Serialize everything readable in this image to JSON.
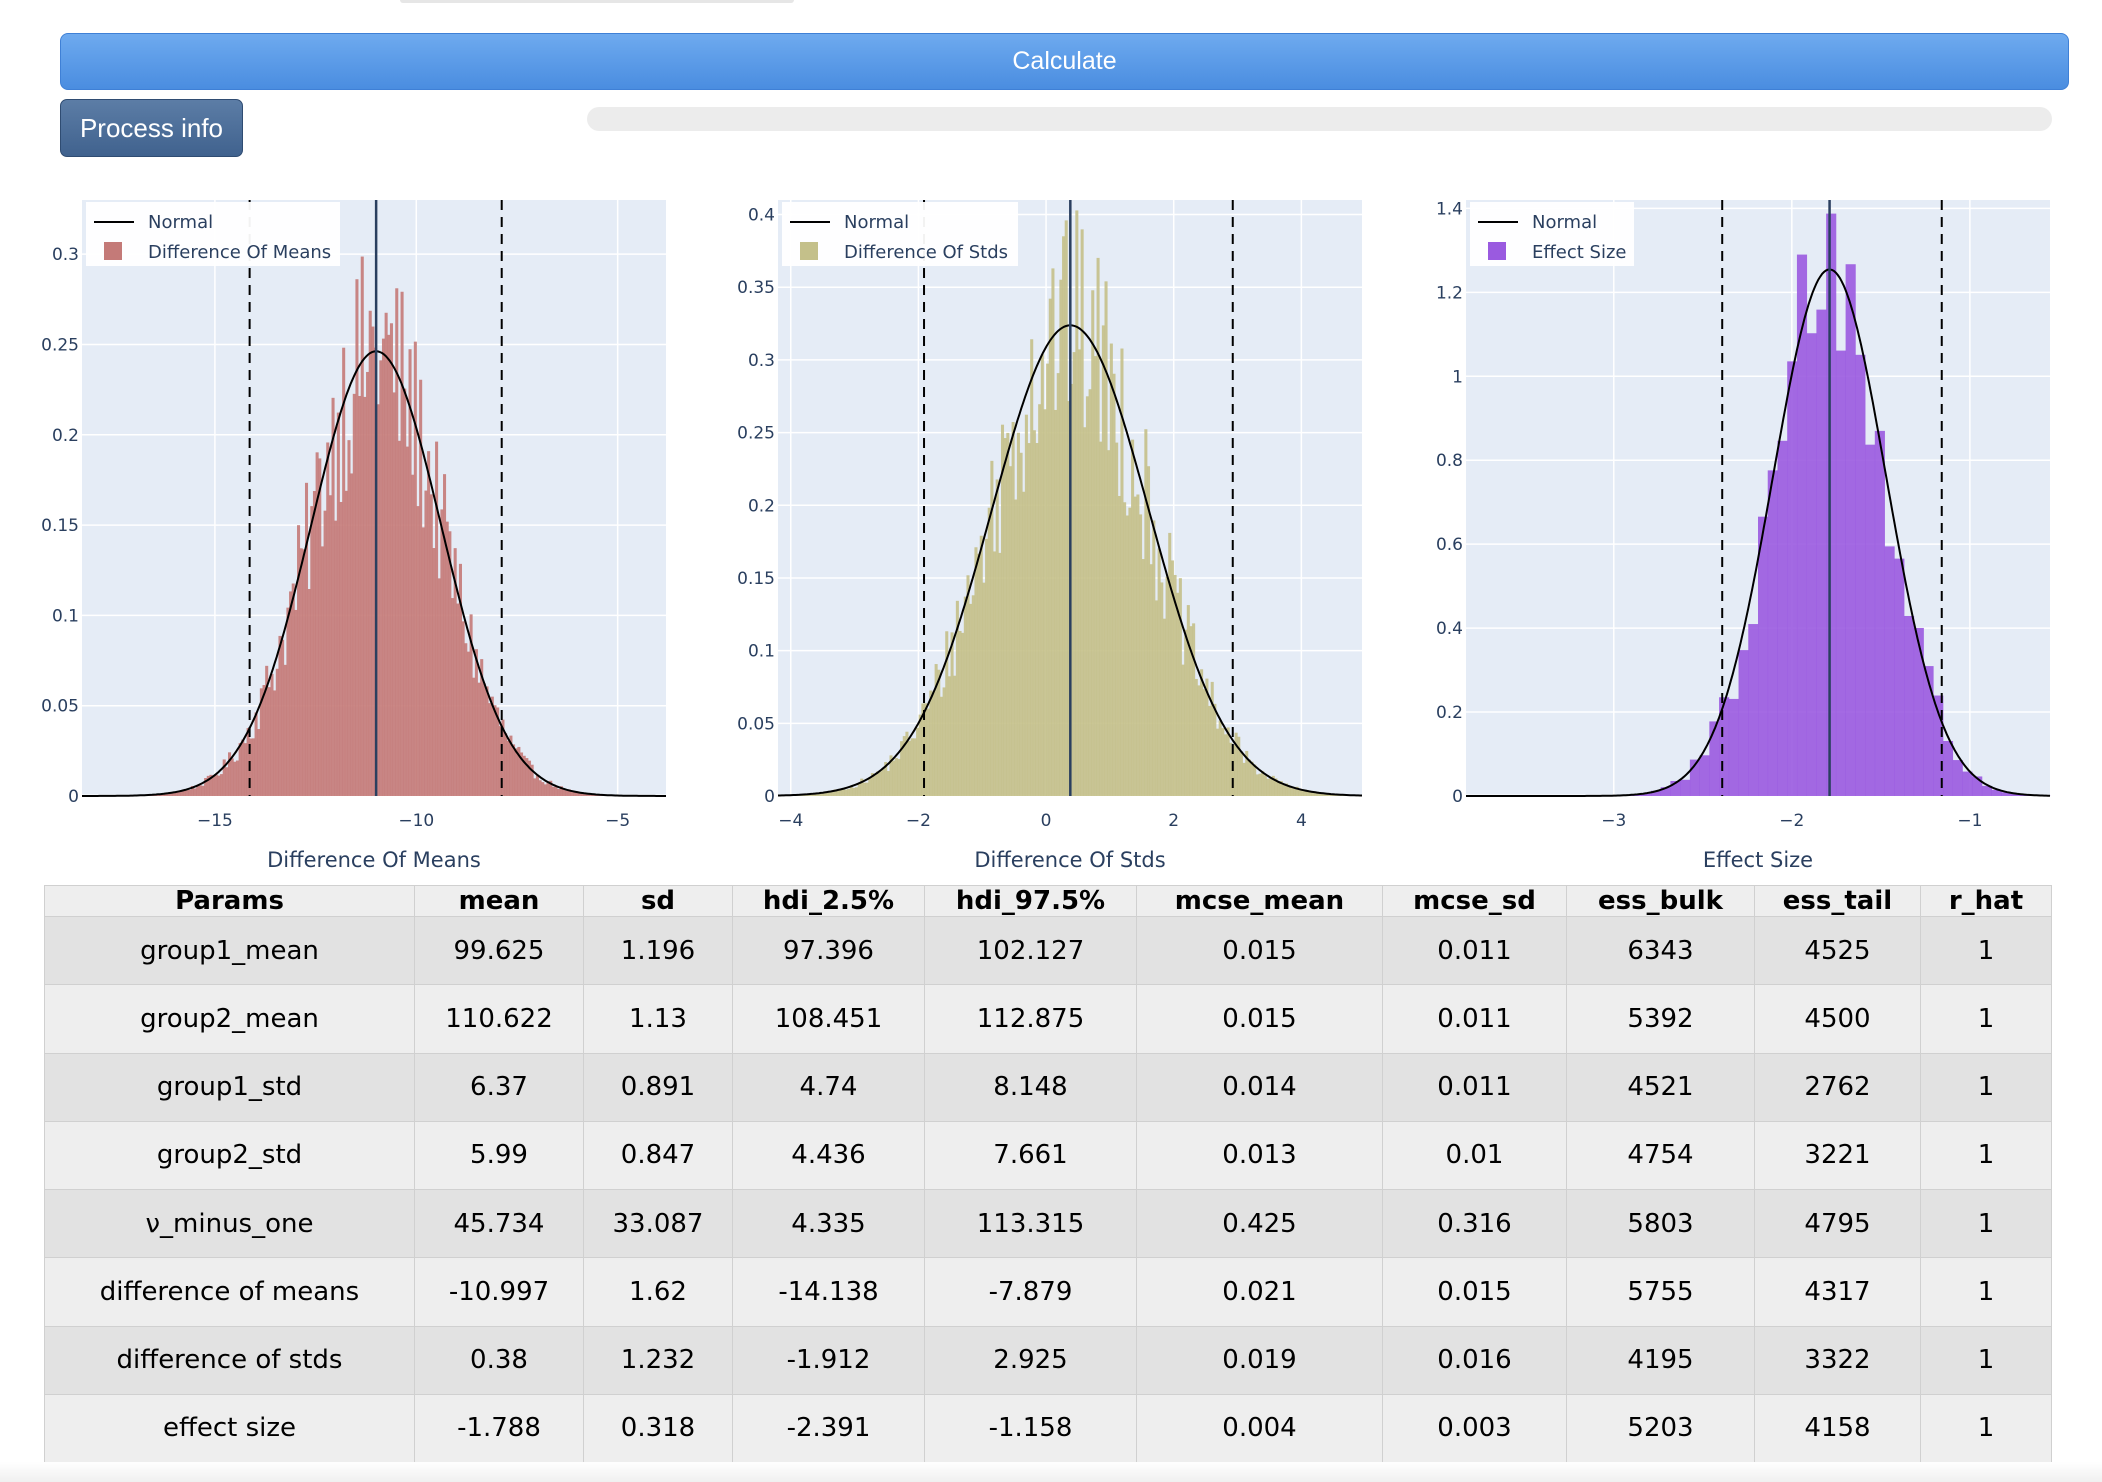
{
  "buttons": {
    "calculate_label": "Calculate",
    "process_info_label": "Process info"
  },
  "progress": {
    "value": 0
  },
  "charts": [
    {
      "chart_data": {
        "type": "bar",
        "title": "",
        "xlabel": "Difference Of Means",
        "ylabel": "",
        "xlim": [
          -18.3,
          -3.8
        ],
        "ylim": [
          0,
          0.33
        ],
        "xticks": [
          -15,
          -10,
          -5
        ],
        "yticks": [
          0,
          0.05,
          0.1,
          0.15,
          0.2,
          0.25,
          0.3
        ],
        "series": [
          {
            "name": "Difference Of Means",
            "type": "histogram",
            "mean": -10.997,
            "sd": 1.62,
            "bin_count": 220
          },
          {
            "name": "Normal",
            "type": "line",
            "mean": -10.997,
            "sd": 1.62
          }
        ],
        "vlines": {
          "center": -10.997,
          "hdi": [
            -14.138,
            -7.879
          ]
        },
        "legend_position": "top-left",
        "grid": true
      },
      "ytick_labels": [
        "0",
        "0.05",
        "0.1",
        "0.15",
        "0.2",
        "0.25",
        "0.3"
      ],
      "xtick_labels": [
        "−15",
        "−10",
        "−5"
      ],
      "color": "#c47a78"
    },
    {
      "chart_data": {
        "type": "bar",
        "title": "",
        "xlabel": "Difference Of Stds",
        "ylabel": "",
        "xlim": [
          -4.2,
          4.95
        ],
        "ylim": [
          0,
          0.41
        ],
        "xticks": [
          -4,
          -2,
          0,
          2,
          4
        ],
        "yticks": [
          0,
          0.05,
          0.1,
          0.15,
          0.2,
          0.25,
          0.3,
          0.35,
          0.4
        ],
        "series": [
          {
            "name": "Difference Of Stds",
            "type": "histogram",
            "mean": 0.38,
            "sd": 1.232,
            "bin_count": 220
          },
          {
            "name": "Normal",
            "type": "line",
            "mean": 0.38,
            "sd": 1.232
          }
        ],
        "vlines": {
          "center": 0.38,
          "hdi": [
            -1.912,
            2.925
          ]
        },
        "legend_position": "top-left",
        "grid": true
      },
      "ytick_labels": [
        "0",
        "0.05",
        "0.1",
        "0.15",
        "0.2",
        "0.25",
        "0.3",
        "0.35",
        "0.4"
      ],
      "xtick_labels": [
        "−4",
        "−2",
        "0",
        "2",
        "4"
      ],
      "color": "#c4c08a"
    },
    {
      "chart_data": {
        "type": "bar",
        "title": "",
        "xlabel": "Effect Size",
        "ylabel": "",
        "xlim": [
          -3.83,
          -0.55
        ],
        "ylim": [
          0,
          1.42
        ],
        "xticks": [
          -3,
          -2,
          -1
        ],
        "yticks": [
          0,
          0.2,
          0.4,
          0.6,
          0.8,
          1,
          1.2,
          1.4
        ],
        "series": [
          {
            "name": "Effect Size",
            "type": "histogram",
            "mean": -1.788,
            "sd": 0.318,
            "bin_count": 60
          },
          {
            "name": "Normal",
            "type": "line",
            "mean": -1.788,
            "sd": 0.318
          }
        ],
        "vlines": {
          "center": -1.788,
          "hdi": [
            -2.391,
            -1.158
          ]
        },
        "legend_position": "top-left",
        "grid": true
      },
      "ytick_labels": [
        "0",
        "0.2",
        "0.4",
        "0.6",
        "0.8",
        "1",
        "1.2",
        "1.4"
      ],
      "xtick_labels": [
        "−3",
        "−2",
        "−1"
      ],
      "color": "#9a5ae0"
    }
  ],
  "table": {
    "headers": [
      "Params",
      "mean",
      "sd",
      "hdi_2.5%",
      "hdi_97.5%",
      "mcse_mean",
      "mcse_sd",
      "ess_bulk",
      "ess_tail",
      "r_hat"
    ],
    "rows": [
      [
        "group1_mean",
        "99.625",
        "1.196",
        "97.396",
        "102.127",
        "0.015",
        "0.011",
        "6343",
        "4525",
        "1"
      ],
      [
        "group2_mean",
        "110.622",
        "1.13",
        "108.451",
        "112.875",
        "0.015",
        "0.011",
        "5392",
        "4500",
        "1"
      ],
      [
        "group1_std",
        "6.37",
        "0.891",
        "4.74",
        "8.148",
        "0.014",
        "0.011",
        "4521",
        "2762",
        "1"
      ],
      [
        "group2_std",
        "5.99",
        "0.847",
        "4.436",
        "7.661",
        "0.013",
        "0.01",
        "4754",
        "3221",
        "1"
      ],
      [
        "ν_minus_one",
        "45.734",
        "33.087",
        "4.335",
        "113.315",
        "0.425",
        "0.316",
        "5803",
        "4795",
        "1"
      ],
      [
        "difference of means",
        "-10.997",
        "1.62",
        "-14.138",
        "-7.879",
        "0.021",
        "0.015",
        "5755",
        "4317",
        "1"
      ],
      [
        "difference of stds",
        "0.38",
        "1.232",
        "-1.912",
        "2.925",
        "0.019",
        "0.016",
        "4195",
        "3322",
        "1"
      ],
      [
        "effect size",
        "-1.788",
        "0.318",
        "-2.391",
        "-1.158",
        "0.004",
        "0.003",
        "5203",
        "4158",
        "1"
      ]
    ]
  }
}
